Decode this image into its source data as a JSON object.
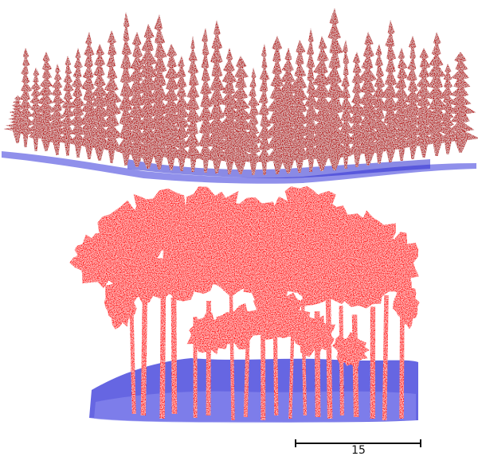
{
  "colors": {
    "background": "#ffffff",
    "panel_top_canopy": "#b40000",
    "panel_bottom_canopy": "#ff1010",
    "understory": "#2a2ae0",
    "understory_light": "#8f8ff0",
    "scale_bar": "#111111"
  },
  "panels": [
    {
      "name": "top-point-cloud",
      "canopy_color_key": "panel_top_canopy"
    },
    {
      "name": "bottom-point-cloud",
      "canopy_color_key": "panel_bottom_canopy"
    }
  ],
  "scale_bar": {
    "label": "15"
  }
}
